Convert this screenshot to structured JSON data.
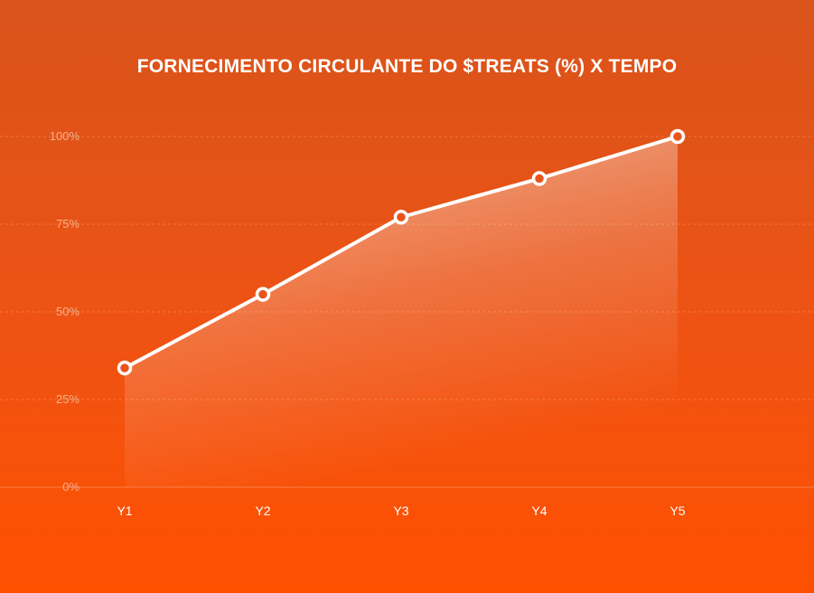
{
  "chart_data": {
    "type": "area",
    "title": "FORNECIMENTO CIRCULANTE DO $TREATS (%) X TEMPO",
    "xlabel": "",
    "ylabel": "",
    "categories": [
      "Y1",
      "Y2",
      "Y3",
      "Y4",
      "Y5"
    ],
    "values": [
      34,
      55,
      77,
      88,
      100
    ],
    "ylim": [
      0,
      100
    ],
    "yticks": [
      "0%",
      "25%",
      "50%",
      "75%",
      "100%"
    ],
    "yticks_values": [
      0,
      25,
      50,
      75,
      100
    ],
    "grid": true,
    "legend": "none",
    "colors": {
      "background": "#e8541a",
      "line": "#ffffff",
      "marker_fill": "#e8541a",
      "grid": "#f7a57a",
      "ytick_text": "#f5b08a",
      "xtick_text": "#ffffff"
    }
  }
}
